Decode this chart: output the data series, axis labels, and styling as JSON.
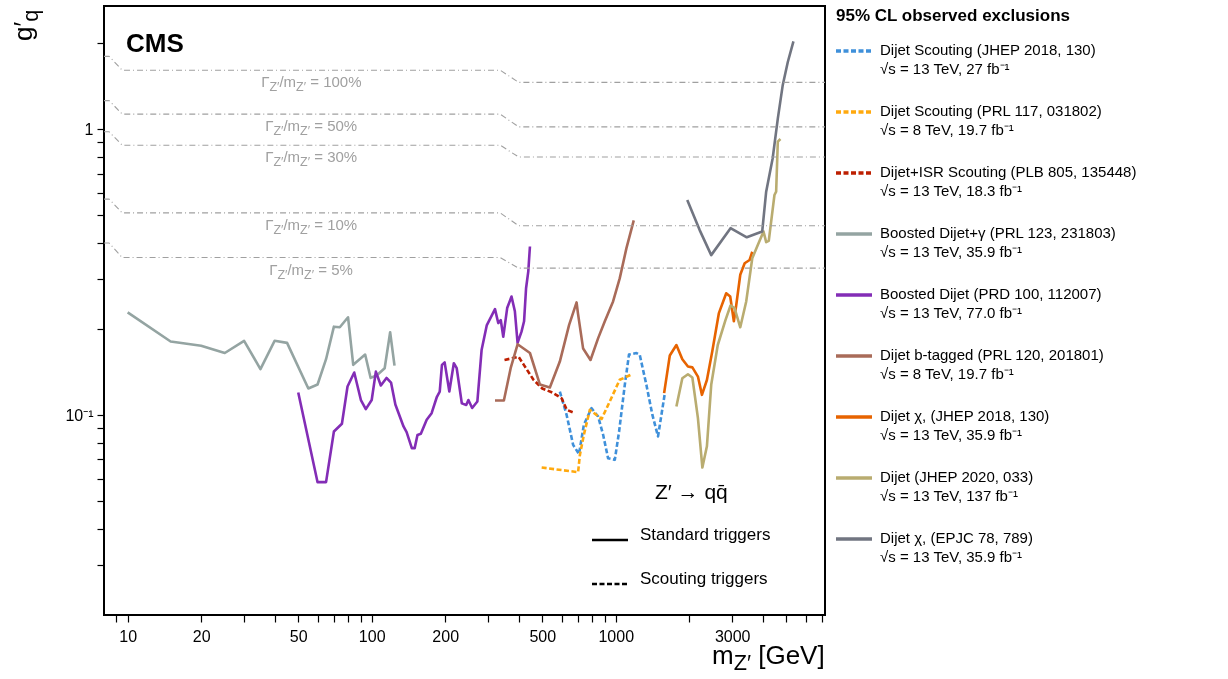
{
  "chart_data": {
    "type": "line",
    "title": "CMS",
    "xlabel": "m$_{Z′}$ [GeV]",
    "ylabel": "g′$_{q}$",
    "legend_title": "95% CL observed exclusions",
    "legend": "right",
    "log": "xy",
    "grid": false,
    "xlim": [
      8,
      7200
    ],
    "xticks": [
      {
        "value": 9,
        "label": null
      },
      10,
      20,
      {
        "value": 30,
        "label": null
      },
      {
        "value": 40,
        "label": null
      },
      50,
      {
        "value": 60,
        "label": null
      },
      {
        "value": 70,
        "label": null
      },
      {
        "value": 80,
        "label": null
      },
      {
        "value": 90,
        "label": null
      },
      100,
      200,
      {
        "value": 300,
        "label": null
      },
      {
        "value": 400,
        "label": null
      },
      500,
      {
        "value": 600,
        "label": null
      },
      {
        "value": 700,
        "label": null
      },
      {
        "value": 800,
        "label": null
      },
      {
        "value": 900,
        "label": null
      },
      1000,
      {
        "value": 2000,
        "label": null
      },
      3000,
      {
        "value": 4000,
        "label": null
      },
      {
        "value": 5000,
        "label": null
      },
      {
        "value": 6000,
        "label": null
      },
      {
        "value": 7000,
        "label": null
      }
    ],
    "ylim": [
      0.02,
      2.7
    ],
    "yticks": [
      {
        "value": 0.03,
        "label": null
      },
      {
        "value": 0.04,
        "label": null
      },
      {
        "value": 0.05,
        "label": null
      },
      {
        "value": 0.06,
        "label": null
      },
      {
        "value": 0.07,
        "label": null
      },
      {
        "value": 0.08,
        "label": null
      },
      {
        "value": 0.09,
        "label": null
      },
      {
        "value": 0.1,
        "label": "10⁻¹"
      },
      {
        "value": 0.2,
        "label": null
      },
      {
        "value": 0.3,
        "label": null
      },
      {
        "value": 0.4,
        "label": null
      },
      {
        "value": 0.5,
        "label": null
      },
      {
        "value": 0.6,
        "label": null
      },
      {
        "value": 0.7,
        "label": null
      },
      {
        "value": 0.8,
        "label": null
      },
      {
        "value": 0.9,
        "label": null
      },
      1,
      {
        "value": 2,
        "label": null
      }
    ],
    "series": [
      {
        "name": "Dijet Scouting (JHEP 2018, 130)\n√s = 13 TeV, 27 fb⁻¹",
        "color": "#3f90da",
        "line_style": "dashed",
        "x": [
          590,
          629,
          669,
          707,
          740,
          795,
          847,
          888,
          930,
          991,
          1032,
          1089,
          1133,
          1215,
          1254,
          1335,
          1413,
          1490,
          1585
        ],
        "values": [
          0.121,
          0.1002,
          0.0787,
          0.0731,
          0.0925,
          0.1058,
          0.0989,
          0.0853,
          0.0707,
          0.0698,
          0.0877,
          0.1277,
          0.163,
          0.165,
          0.1625,
          0.1277,
          0.1002,
          0.0843,
          0.1178
        ]
      },
      {
        "name": "Dijet Scouting (PRL 117, 031802)\n√s = 8 TeV, 19.7 fb⁻¹",
        "color": "#ffa90e",
        "line_style": "dashed",
        "x": [
          497,
          701,
          713,
          740,
          783,
          875,
          945,
          1038,
          1166
        ],
        "values": [
          0.0656,
          0.0632,
          0.0726,
          0.0853,
          0.1044,
          0.097,
          0.1117,
          0.133,
          0.139
        ]
      },
      {
        "name": "Dijet+ISR Scouting (PLB 805, 135448)\n√s = 13 TeV, 18.3 fb⁻¹",
        "color": "#bd1f01",
        "line_style": "dashed",
        "x": [
          350,
          400,
          420,
          460,
          500,
          550,
          600,
          630,
          680
        ],
        "values": [
          0.156,
          0.16,
          0.15,
          0.133,
          0.124,
          0.12,
          0.1146,
          0.1044,
          0.1016
        ]
      },
      {
        "name": "Boosted Dijet+γ (PRL 123, 231803)\n√s = 13 TeV, 35.9 fb⁻¹",
        "color": "#94a4a2",
        "line_style": "solid",
        "x": [
          10,
          15,
          20,
          25,
          30,
          35,
          40,
          45,
          55,
          60,
          65,
          70,
          74,
          80,
          84,
          94,
          99,
          105,
          113,
          119,
          124
        ],
        "values": [
          0.229,
          0.181,
          0.175,
          0.165,
          0.182,
          0.145,
          0.182,
          0.179,
          0.124,
          0.128,
          0.157,
          0.204,
          0.203,
          0.22,
          0.15,
          0.163,
          0.135,
          0.138,
          0.146,
          0.195,
          0.149
        ]
      },
      {
        "name": "Boosted Dijet (PRD 100, 112007)\n√s = 13 TeV, 77.0 fb⁻¹",
        "color": "#832db6",
        "line_style": "solid",
        "x": [
          50,
          60,
          65,
          70,
          75.5,
          79.6,
          84.8,
          90.3,
          94.6,
          100,
          104,
          109,
          115,
          120,
          125,
          135,
          139,
          146,
          150,
          154,
          159,
          168,
          176,
          185,
          190,
          194,
          199,
          208,
          217,
          223,
          234,
          244,
          249,
          258,
          271,
          282,
          296,
          320,
          330,
          338,
          346,
          359,
          374,
          386,
          396,
          411,
          421,
          429,
          438,
          445
        ],
        "values": [
          0.12,
          0.0583,
          0.0583,
          0.0877,
          0.0933,
          0.126,
          0.141,
          0.113,
          0.105,
          0.113,
          0.142,
          0.127,
          0.135,
          0.13,
          0.109,
          0.0913,
          0.0872,
          0.0767,
          0.0767,
          0.0853,
          0.0861,
          0.0964,
          0.1016,
          0.116,
          0.121,
          0.15,
          0.153,
          0.121,
          0.152,
          0.146,
          0.11,
          0.1086,
          0.113,
          0.106,
          0.1117,
          0.169,
          0.206,
          0.235,
          0.21,
          0.215,
          0.188,
          0.237,
          0.26,
          0.231,
          0.179,
          0.196,
          0.213,
          0.278,
          0.318,
          0.389
        ]
      },
      {
        "name": "Dijet b-tagged (PRL 120, 201801)\n√s = 8 TeV, 19.7 fb⁻¹",
        "color": "#a96b59",
        "line_style": "solid",
        "x": [
          320,
          348,
          371,
          396,
          445,
          489,
          537,
          590,
          644,
          691,
          700,
          735,
          788,
          847,
          902,
          975,
          1038,
          1106,
          1185
        ],
        "values": [
          0.1125,
          0.1125,
          0.146,
          0.177,
          0.165,
          0.128,
          0.125,
          0.154,
          0.207,
          0.248,
          0.227,
          0.171,
          0.156,
          0.186,
          0.213,
          0.25,
          0.301,
          0.384,
          0.48
        ]
      },
      {
        "name": "Dijet χ, (JHEP 2018, 130)\n√s = 13 TeV, 35.9 fb⁻¹",
        "color": "#e76300",
        "line_style": "solid",
        "x": [
          1578,
          1665,
          1772,
          1874,
          1976,
          2060,
          2171,
          2255,
          2363,
          2485,
          2644,
          2835,
          2944,
          3047,
          3117,
          3237,
          3374,
          3535,
          3625
        ],
        "values": [
          0.1194,
          0.1617,
          0.176,
          0.157,
          0.148,
          0.147,
          0.1365,
          0.1178,
          0.1328,
          0.167,
          0.227,
          0.267,
          0.26,
          0.213,
          0.243,
          0.31,
          0.34,
          0.349,
          0.373
        ]
      },
      {
        "name": "Dijet (JHEP 2020, 033)\n√s = 13 TeV, 137 fb⁻¹",
        "color": "#b9ac70",
        "line_style": "solid",
        "x": [
          1772,
          1874,
          1976,
          2060,
          2171,
          2264,
          2363,
          2461,
          2618,
          2815,
          2953,
          3067,
          3237,
          3424,
          3625,
          3819,
          4031,
          4133,
          4236,
          4469,
          4541,
          4613,
          4729
        ],
        "values": [
          0.1072,
          0.1346,
          0.139,
          0.1355,
          0.0977,
          0.0656,
          0.0778,
          0.1277,
          0.176,
          0.215,
          0.242,
          0.237,
          0.203,
          0.25,
          0.354,
          0.394,
          0.439,
          0.403,
          0.407,
          0.589,
          0.605,
          0.906,
          0.925
        ]
      },
      {
        "name": "Dijet χ, (EPJC 78, 789)\n√s = 13 TeV, 35.9 fb⁻¹",
        "color": "#717581",
        "line_style": "solid",
        "x": [
          1963,
          2207,
          2461,
          2953,
          3443,
          3981,
          4133,
          4395,
          4613,
          4834,
          5069,
          5346
        ],
        "values": [
          0.566,
          0.444,
          0.363,
          0.451,
          0.419,
          0.439,
          0.605,
          0.792,
          1.09,
          1.43,
          1.72,
          2.03
        ]
      },
      {
        "name": "Γ$_{Z′}$/m$_{Z′}$ = 100%",
        "color": "#a0a0a0",
        "line_style": "dashdot",
        "x": [
          8,
          8.4,
          9.5,
          336,
          400,
          7200
        ],
        "values": [
          1.8,
          1.8,
          1.61,
          1.61,
          1.46,
          1.46
        ]
      },
      {
        "name": "Γ$_{Z′}$/m$_{Z′}$ = 50%",
        "color": "#a0a0a0",
        "line_style": "dashdot",
        "x": [
          8,
          8.4,
          9.5,
          336,
          400,
          7200
        ],
        "values": [
          1.26,
          1.26,
          1.13,
          1.13,
          1.02,
          1.02
        ]
      },
      {
        "name": "Γ$_{Z′}$/m$_{Z′}$ = 30%",
        "color": "#a0a0a0",
        "line_style": "dashdot",
        "x": [
          8,
          8.4,
          9.5,
          336,
          400,
          7200
        ],
        "values": [
          0.98,
          0.98,
          0.88,
          0.88,
          0.8,
          0.8
        ]
      },
      {
        "name": "Γ$_{Z′}$/m$_{Z′}$ = 10%",
        "color": "#a0a0a0",
        "line_style": "dashdot",
        "x": [
          8,
          8.4,
          9.5,
          336,
          400,
          7200
        ],
        "values": [
          0.57,
          0.57,
          0.51,
          0.51,
          0.46,
          0.46
        ]
      },
      {
        "name": "Γ$_{Z′}$/m$_{Z′}$ = 5%",
        "color": "#a0a0a0",
        "line_style": "dashdot",
        "x": [
          8,
          8.4,
          9.5,
          336,
          400,
          7200
        ],
        "values": [
          0.4,
          0.4,
          0.356,
          0.356,
          0.327,
          0.327
        ]
      }
    ],
    "annotations": [
      "Z′ → qq̄",
      "Standard triggers",
      "Scouting triggers"
    ]
  }
}
